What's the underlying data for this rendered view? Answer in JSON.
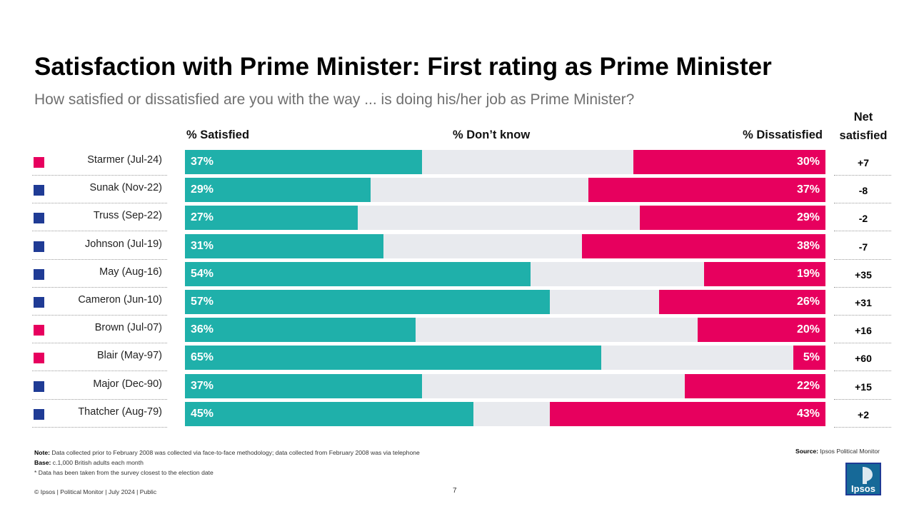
{
  "title": "Satisfaction with Prime Minister:  First rating as Prime Minister",
  "subtitle": "How satisfied or dissatisfied are you with the way ... is doing his/her job as Prime Minister?",
  "colors": {
    "satisfied": "#1fb0aa",
    "dont_know": "#e8eaee",
    "dissatisfied": "#e7005e",
    "labour": "#e7005e",
    "conservative": "#1f3b95"
  },
  "chart_data": {
    "type": "bar",
    "stacked": true,
    "orientation": "horizontal",
    "title": "Satisfaction with Prime Minister:  First rating as Prime Minister",
    "xlim": [
      0,
      100
    ],
    "column_headers": {
      "satisfied": "% Satisfied",
      "dont_know": "% Don’t know",
      "dissatisfied": "% Dissatisfied",
      "net_line1": "Net",
      "net_line2": "satisfied"
    },
    "categories": [
      "Starmer (Jul-24)",
      "Sunak (Nov-22)",
      "Truss (Sep-22)",
      "Johnson (Jul-19)",
      "May (Aug-16)",
      "Cameron (Jun-10)",
      "Brown (Jul-07)",
      "Blair (May-97)",
      "Major (Dec-90)",
      "Thatcher (Aug-79)"
    ],
    "party": [
      "labour",
      "conservative",
      "conservative",
      "conservative",
      "conservative",
      "conservative",
      "labour",
      "labour",
      "conservative",
      "conservative"
    ],
    "series": [
      {
        "name": "% Satisfied",
        "values": [
          37,
          29,
          27,
          31,
          54,
          57,
          36,
          65,
          37,
          45
        ]
      },
      {
        "name": "% Dissatisfied",
        "values": [
          30,
          37,
          29,
          38,
          19,
          26,
          20,
          5,
          22,
          43
        ]
      }
    ],
    "satisfied_labels": [
      "37%",
      "29%",
      "27%",
      "31%",
      "54%",
      "57%",
      "36%",
      "65%",
      "37%",
      "45%"
    ],
    "dissatisfied_labels": [
      "30%",
      "37%",
      "29%",
      "38%",
      "19%",
      "26%",
      "20%",
      "5%",
      "22%",
      "43%"
    ],
    "net_satisfied": [
      "+7",
      "-8",
      "-2",
      "-7",
      "+35",
      "+31",
      "+16",
      "+60",
      "+15",
      "+2"
    ]
  },
  "notes": {
    "note_label": "Note:",
    "note_text": "Data collected prior to February 2008 was collected via face-to-face methodology;  data collected from February 2008 was via telephone",
    "base_label": "Base:",
    "base_text": "c.1,000 British adults each month",
    "footnote": "* Data has been taken from the survey closest to the election date"
  },
  "source": {
    "label": "Source:",
    "text": "Ipsos Political Monitor"
  },
  "footer": "© Ipsos | Political Monitor | July 2024 | Public",
  "page_number": "7",
  "logo_text": "Ipsos"
}
